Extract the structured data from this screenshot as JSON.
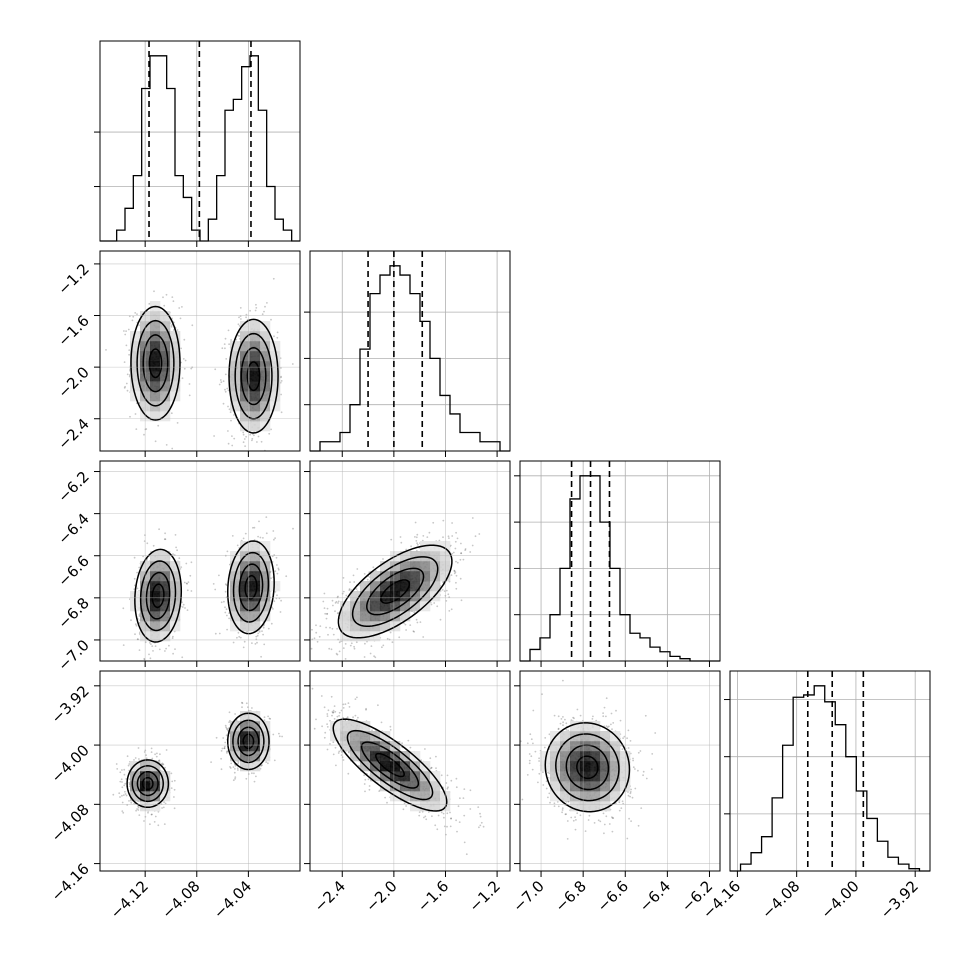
{
  "chart_data": {
    "type": "corner",
    "parameters": [
      {
        "range": [
          -4.155,
          -4.0
        ],
        "ticks": [
          -4.12,
          -4.08,
          -4.04
        ],
        "tick_labels": [
          "−4.12",
          "−4.08",
          "−4.04"
        ],
        "quantiles": [
          -4.117,
          -4.078,
          -4.038
        ],
        "histogram": [
          0,
          0,
          1,
          3,
          6,
          14,
          17,
          17,
          14,
          6,
          4,
          1,
          0,
          2,
          6,
          12,
          13,
          16,
          17,
          12,
          5,
          2,
          1,
          0
        ],
        "hist_yticks": [
          5,
          10
        ]
      },
      {
        "range": [
          -2.65,
          -1.1
        ],
        "ticks": [
          -2.4,
          -2.0,
          -1.6,
          -1.2
        ],
        "tick_labels": [
          "−2.4",
          "−2.0",
          "−1.6",
          "−1.2"
        ],
        "quantiles": [
          -2.2,
          -2.0,
          -1.78
        ],
        "histogram": [
          0,
          1,
          1,
          2,
          5,
          11,
          17,
          19,
          20,
          19,
          17,
          14,
          10,
          6,
          4,
          2,
          2,
          1,
          1,
          0
        ],
        "hist_yticks": [
          5,
          10,
          15
        ]
      },
      {
        "range": [
          -7.1,
          -6.15
        ],
        "ticks": [
          -7.0,
          -6.8,
          -6.6,
          -6.4,
          -6.2
        ],
        "tick_labels": [
          "−7.0",
          "−6.8",
          "−6.6",
          "−6.4",
          "−6.2"
        ],
        "quantiles": [
          -6.855,
          -6.765,
          -6.675
        ],
        "histogram": [
          0,
          0.5,
          1,
          2,
          4,
          7,
          8,
          8,
          6,
          4,
          2,
          1.2,
          1,
          0.6,
          0.4,
          0.2,
          0.1,
          0,
          0,
          0
        ],
        "hist_yticks": [
          2,
          4,
          6,
          8
        ]
      },
      {
        "range": [
          -4.17,
          -3.9
        ],
        "ticks": [
          -4.16,
          -4.08,
          -4.0,
          -3.92
        ],
        "tick_labels": [
          "−4.16",
          "−4.08",
          "−4.00",
          "−3.92"
        ],
        "quantiles": [
          -4.065,
          -4.032,
          -3.99
        ],
        "histogram": [
          0,
          0.3,
          0.8,
          1.5,
          3.2,
          5.5,
          7.6,
          7.7,
          8.1,
          7.4,
          6.4,
          5.0,
          3.5,
          2.3,
          1.3,
          0.6,
          0.3,
          0.1,
          0
        ],
        "hist_yticks": [
          2.5,
          5,
          7.5
        ]
      }
    ],
    "pairs": [
      {
        "x": 0,
        "y": 1,
        "blobs": [
          {
            "mx": -4.112,
            "my": -1.97,
            "sx": 0.0095,
            "sy": 0.22,
            "rho": 0.0,
            "w": 1
          },
          {
            "mx": -4.036,
            "my": -2.07,
            "sx": 0.0095,
            "sy": 0.22,
            "rho": 0.0,
            "w": 1
          }
        ]
      },
      {
        "x": 0,
        "y": 2,
        "blobs": [
          {
            "mx": -4.11,
            "my": -6.79,
            "sx": 0.009,
            "sy": 0.11,
            "rho": 0.1,
            "w": 1
          },
          {
            "mx": -4.038,
            "my": -6.75,
            "sx": 0.009,
            "sy": 0.11,
            "rho": 0.1,
            "w": 1
          }
        ]
      },
      {
        "x": 0,
        "y": 3,
        "blobs": [
          {
            "mx": -4.118,
            "my": -4.052,
            "sx": 0.008,
            "sy": 0.016,
            "rho": 0.0,
            "w": 1
          },
          {
            "mx": -4.04,
            "my": -3.995,
            "sx": 0.008,
            "sy": 0.019,
            "rho": 0.0,
            "w": 1
          }
        ]
      },
      {
        "x": 1,
        "y": 2,
        "blobs": [
          {
            "mx": -1.99,
            "my": -6.77,
            "sx": 0.22,
            "sy": 0.11,
            "rho": 0.65,
            "w": 1
          }
        ]
      },
      {
        "x": 1,
        "y": 3,
        "blobs": [
          {
            "mx": -2.03,
            "my": -4.027,
            "sx": 0.22,
            "sy": 0.031,
            "rho": -0.8,
            "w": 1
          }
        ]
      },
      {
        "x": 2,
        "y": 3,
        "blobs": [
          {
            "mx": -6.78,
            "my": -4.03,
            "sx": 0.1,
            "sy": 0.03,
            "rho": -0.05,
            "w": 1
          }
        ]
      }
    ]
  }
}
